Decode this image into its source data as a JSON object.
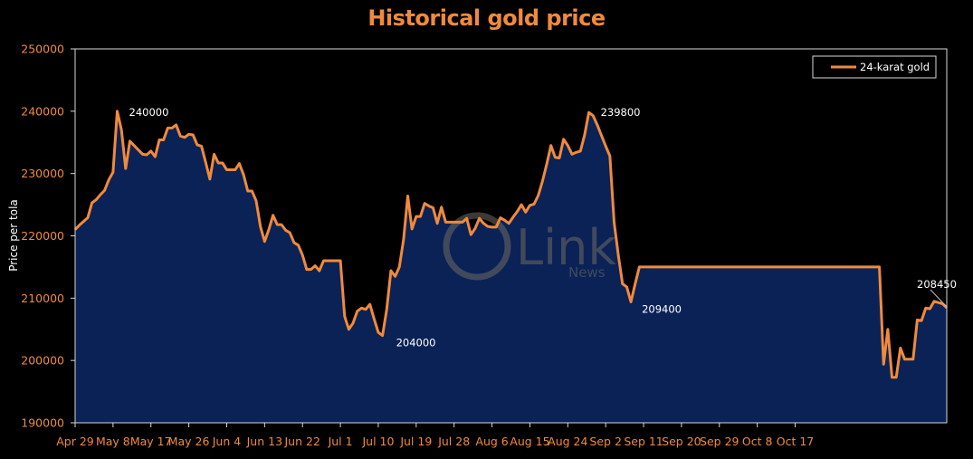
{
  "chart_data": {
    "type": "area",
    "title": "Historical gold price",
    "xlabel": "",
    "ylabel": "Price per tola",
    "ylim": [
      190000,
      250000
    ],
    "y_ticks": [
      "190000",
      "200000",
      "210000",
      "220000",
      "230000",
      "240000",
      "250000"
    ],
    "x_tick_labels": [
      "Apr 29",
      "May 8",
      "May 17",
      "May 26",
      "Jun 4",
      "Jun 13",
      "Jun 22",
      "Jul 1",
      "Jul 10",
      "Jul 19",
      "Jul 28",
      "Aug 6",
      "Aug 15",
      "Aug 24",
      "Sep 2",
      "Sep 11",
      "Sep 20",
      "Sep 29",
      "Oct 8",
      "Oct 17"
    ],
    "x_start": "Apr 29",
    "legend": {
      "position": "top-right",
      "entries": [
        "24-karat gold"
      ]
    },
    "grid": false,
    "colors": {
      "line": "#f08a3c",
      "area": "#0a2256",
      "plot_bg": "#000000",
      "text": "#f08a3c",
      "label": "#ffffff"
    },
    "series": [
      {
        "name": "24-karat gold",
        "values": [
          [
            0,
            221000
          ],
          [
            1,
            221700
          ],
          [
            2,
            222300
          ],
          [
            3,
            222900
          ],
          [
            4,
            225300
          ],
          [
            5,
            225800
          ],
          [
            6,
            226600
          ],
          [
            7,
            227300
          ],
          [
            8,
            229000
          ],
          [
            9,
            230200
          ],
          [
            10,
            240000
          ],
          [
            11,
            237000
          ],
          [
            12,
            230800
          ],
          [
            13,
            235200
          ],
          [
            14,
            234500
          ],
          [
            15,
            233800
          ],
          [
            16,
            233100
          ],
          [
            17,
            233000
          ],
          [
            18,
            233600
          ],
          [
            19,
            232700
          ],
          [
            20,
            235400
          ],
          [
            21,
            235400
          ],
          [
            22,
            237300
          ],
          [
            23,
            237300
          ],
          [
            24,
            237800
          ],
          [
            25,
            236000
          ],
          [
            26,
            235800
          ],
          [
            27,
            236300
          ],
          [
            28,
            236200
          ],
          [
            29,
            234600
          ],
          [
            30,
            234400
          ],
          [
            31,
            231800
          ],
          [
            32,
            229100
          ],
          [
            33,
            233100
          ],
          [
            34,
            231700
          ],
          [
            35,
            231700
          ],
          [
            36,
            230600
          ],
          [
            37,
            230600
          ],
          [
            38,
            230600
          ],
          [
            39,
            231600
          ],
          [
            40,
            229800
          ],
          [
            41,
            227200
          ],
          [
            42,
            227200
          ],
          [
            43,
            225600
          ],
          [
            44,
            221500
          ],
          [
            45,
            219100
          ],
          [
            46,
            221000
          ],
          [
            47,
            223300
          ],
          [
            48,
            221800
          ],
          [
            49,
            221800
          ],
          [
            50,
            220900
          ],
          [
            51,
            220500
          ],
          [
            52,
            218900
          ],
          [
            53,
            218500
          ],
          [
            54,
            216900
          ],
          [
            55,
            214600
          ],
          [
            56,
            214600
          ],
          [
            57,
            215200
          ],
          [
            58,
            214400
          ],
          [
            59,
            216000
          ],
          [
            60,
            216000
          ],
          [
            61,
            216000
          ],
          [
            62,
            216000
          ],
          [
            63,
            216000
          ],
          [
            64,
            207100
          ],
          [
            65,
            205000
          ],
          [
            66,
            206000
          ],
          [
            67,
            207900
          ],
          [
            68,
            208400
          ],
          [
            69,
            208200
          ],
          [
            70,
            209000
          ],
          [
            71,
            206700
          ],
          [
            72,
            204500
          ],
          [
            73,
            204000
          ],
          [
            74,
            208200
          ],
          [
            75,
            214400
          ],
          [
            76,
            213500
          ],
          [
            77,
            215000
          ],
          [
            78,
            219400
          ],
          [
            79,
            226400
          ],
          [
            80,
            221100
          ],
          [
            81,
            223100
          ],
          [
            82,
            223100
          ],
          [
            83,
            225200
          ],
          [
            84,
            224800
          ],
          [
            85,
            224500
          ],
          [
            86,
            222000
          ],
          [
            87,
            224600
          ],
          [
            88,
            222200
          ],
          [
            89,
            222200
          ],
          [
            90,
            222200
          ],
          [
            91,
            222200
          ],
          [
            92,
            222200
          ],
          [
            93,
            222800
          ],
          [
            94,
            220200
          ],
          [
            95,
            221200
          ],
          [
            96,
            222800
          ],
          [
            97,
            222000
          ],
          [
            98,
            221500
          ],
          [
            99,
            221400
          ],
          [
            100,
            221400
          ],
          [
            101,
            222900
          ],
          [
            102,
            222500
          ],
          [
            103,
            222000
          ],
          [
            104,
            223000
          ],
          [
            105,
            223900
          ],
          [
            106,
            225000
          ],
          [
            107,
            223800
          ],
          [
            108,
            224900
          ],
          [
            109,
            225100
          ],
          [
            110,
            226500
          ],
          [
            111,
            228800
          ],
          [
            112,
            231500
          ],
          [
            113,
            234500
          ],
          [
            114,
            232600
          ],
          [
            115,
            232500
          ],
          [
            116,
            235500
          ],
          [
            117,
            234500
          ],
          [
            118,
            233100
          ],
          [
            119,
            233400
          ],
          [
            120,
            233600
          ],
          [
            121,
            236200
          ],
          [
            122,
            239800
          ],
          [
            123,
            239300
          ],
          [
            124,
            237800
          ],
          [
            125,
            236100
          ],
          [
            126,
            234400
          ],
          [
            127,
            232800
          ],
          [
            128,
            222200
          ],
          [
            129,
            216900
          ],
          [
            130,
            212300
          ],
          [
            131,
            211800
          ],
          [
            132,
            209400
          ],
          [
            133,
            212300
          ],
          [
            134,
            215000
          ],
          [
            135,
            215000
          ],
          [
            136,
            215000
          ],
          [
            137,
            215000
          ],
          [
            138,
            215000
          ],
          [
            139,
            215000
          ],
          [
            140,
            215000
          ],
          [
            141,
            215000
          ],
          [
            142,
            215000
          ],
          [
            143,
            215000
          ],
          [
            144,
            215000
          ],
          [
            145,
            215000
          ],
          [
            146,
            215000
          ],
          [
            147,
            215000
          ],
          [
            148,
            215000
          ],
          [
            149,
            215000
          ],
          [
            150,
            215000
          ],
          [
            151,
            215000
          ],
          [
            152,
            215000
          ],
          [
            153,
            215000
          ],
          [
            154,
            215000
          ],
          [
            155,
            215000
          ],
          [
            156,
            215000
          ],
          [
            157,
            215000
          ],
          [
            158,
            215000
          ],
          [
            159,
            215000
          ],
          [
            160,
            215000
          ],
          [
            161,
            215000
          ],
          [
            162,
            215000
          ],
          [
            163,
            215000
          ],
          [
            164,
            215000
          ],
          [
            165,
            215000
          ],
          [
            166,
            215000
          ],
          [
            167,
            215000
          ],
          [
            168,
            215000
          ],
          [
            169,
            215000
          ],
          [
            170,
            215000
          ],
          [
            171,
            215000
          ],
          [
            172,
            215000
          ],
          [
            173,
            215000
          ],
          [
            174,
            215000
          ],
          [
            175,
            215000
          ],
          [
            176,
            215000
          ],
          [
            177,
            215000
          ],
          [
            178,
            215000
          ],
          [
            179,
            215000
          ],
          [
            180,
            215000
          ],
          [
            181,
            215000
          ],
          [
            182,
            215000
          ],
          [
            183,
            215000
          ],
          [
            184,
            215000
          ],
          [
            185,
            215000
          ],
          [
            186,
            215000
          ],
          [
            187,
            215000
          ],
          [
            188,
            215000
          ],
          [
            189,
            215000
          ],
          [
            190,
            215000
          ],
          [
            191,
            215000
          ],
          [
            192,
            199400
          ],
          [
            193,
            205000
          ],
          [
            194,
            197300
          ],
          [
            195,
            197300
          ],
          [
            196,
            202000
          ],
          [
            197,
            200200
          ],
          [
            198,
            200200
          ],
          [
            199,
            200200
          ],
          [
            200,
            206500
          ],
          [
            201,
            206400
          ],
          [
            202,
            208400
          ],
          [
            203,
            208300
          ],
          [
            204,
            209500
          ],
          [
            205,
            209300
          ],
          [
            206,
            209100
          ],
          [
            207,
            208450
          ]
        ]
      }
    ],
    "annotations": [
      {
        "text": "240000",
        "x": 10,
        "y": 240000
      },
      {
        "text": "204000",
        "x": 73,
        "y": 204000
      },
      {
        "text": "239800",
        "x": 122,
        "y": 239800
      },
      {
        "text": "209400",
        "x": 132,
        "y": 209400
      },
      {
        "text": "208450",
        "x": 207,
        "y": 208450
      }
    ]
  },
  "watermark": {
    "text": "Link",
    "subtext": "News"
  }
}
